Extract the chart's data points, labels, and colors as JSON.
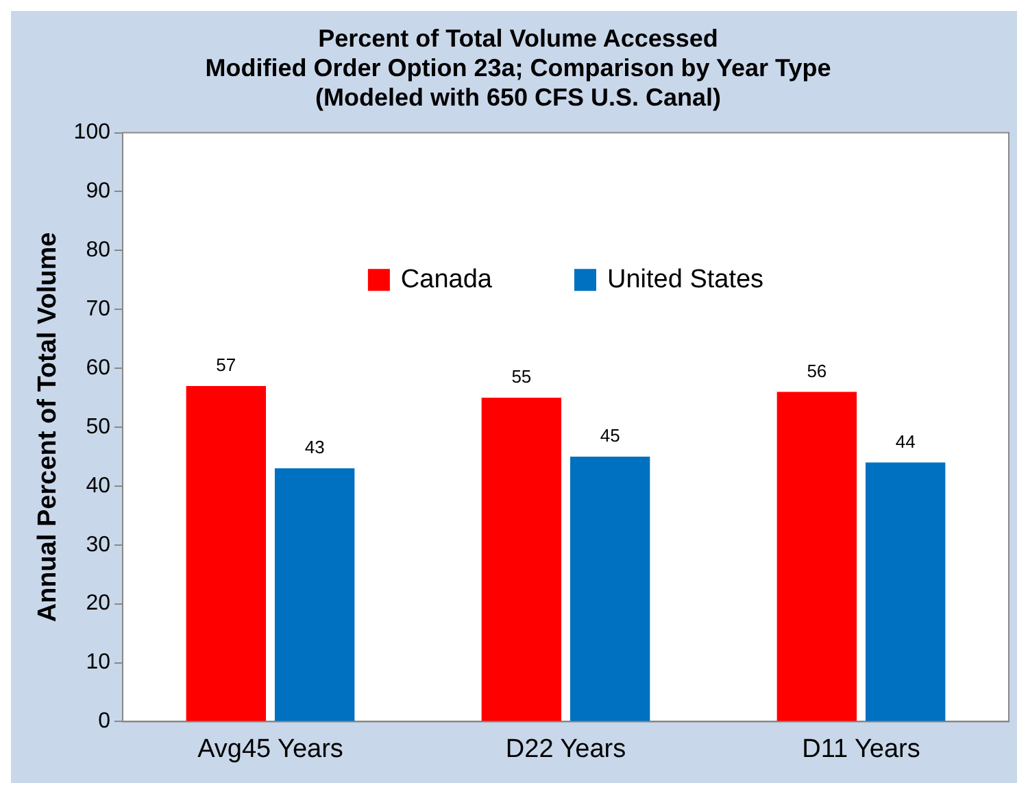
{
  "chart_data": {
    "type": "bar",
    "title": [
      "Percent of Total Volume Accessed",
      "Modified Order Option 23a; Comparison by Year Type",
      "(Modeled with 650 CFS U.S. Canal)"
    ],
    "ylabel": "Annual Percent of Total Volume",
    "categories": [
      "Avg45 Years",
      "D22 Years",
      "D11 Years"
    ],
    "series": [
      {
        "name": "Canada",
        "color": "#ff0000",
        "values": [
          57,
          55,
          56
        ]
      },
      {
        "name": "United States",
        "color": "#0070c0",
        "values": [
          43,
          45,
          44
        ]
      }
    ],
    "ylim": [
      0,
      100
    ],
    "yticks": [
      0,
      10,
      20,
      30,
      40,
      50,
      60,
      70,
      80,
      90,
      100
    ],
    "grid": false,
    "legend": "top",
    "data_labels": true
  }
}
